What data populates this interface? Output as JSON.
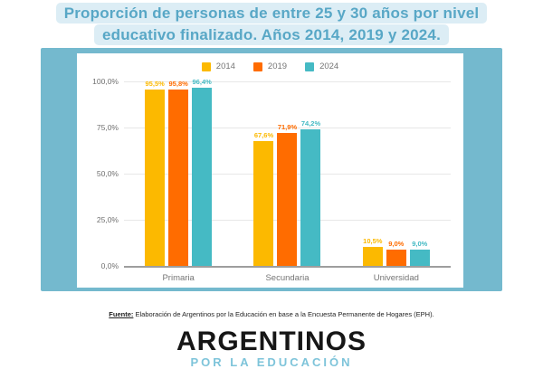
{
  "title": {
    "line1": "Proporción de personas de entre 25 y 30 años por nivel",
    "line2": "educativo finalizado. Años 2014, 2019 y 2024."
  },
  "chart_data": {
    "type": "bar",
    "title": "Proporción de personas de entre 25 y 30 años por nivel educativo finalizado. Años 2014, 2019 y 2024.",
    "categories": [
      "Primaria",
      "Secundaria",
      "Universidad"
    ],
    "series": [
      {
        "name": "2014",
        "color": "#FCB900",
        "values": [
          95.5,
          67.6,
          10.5
        ],
        "value_labels": [
          "95,5%",
          "67,6%",
          "10,5%"
        ]
      },
      {
        "name": "2019",
        "color": "#FF6C00",
        "values": [
          95.8,
          71.9,
          9.0
        ],
        "value_labels": [
          "95,8%",
          "71,9%",
          "9,0%"
        ]
      },
      {
        "name": "2024",
        "color": "#45BAC4",
        "values": [
          96.4,
          74.2,
          9.0
        ],
        "value_labels": [
          "96,4%",
          "74,2%",
          "9,0%"
        ]
      }
    ],
    "y_ticks": [
      {
        "label": "100,0%",
        "value": 100
      },
      {
        "label": "75,0%",
        "value": 75
      },
      {
        "label": "50,0%",
        "value": 50
      },
      {
        "label": "25,0%",
        "value": 25
      },
      {
        "label": "0,0%",
        "value": 0
      }
    ],
    "ylim": [
      0,
      100
    ],
    "grid": true,
    "legend_position": "top",
    "xlabel": "",
    "ylabel": ""
  },
  "footer": {
    "source_label": "Fuente:",
    "source_text": " Elaboración de Argentinos por la Educación en base a la Encuesta Permanente de Hogares (EPH)."
  },
  "logo": {
    "line1": "ARGENTINOS",
    "line2": "POR LA EDUCACIÓN"
  },
  "colors": {
    "card_background": "#74B9CE",
    "title_text": "#58A7C6",
    "title_highlight": "#DCEDF5",
    "series_2014": "#FCB900",
    "series_2019": "#FF6C00",
    "series_2024": "#45BAC4",
    "gridline": "#E7E7E7",
    "axis_line": "#9E9E9E",
    "label_grey": "#757575"
  }
}
